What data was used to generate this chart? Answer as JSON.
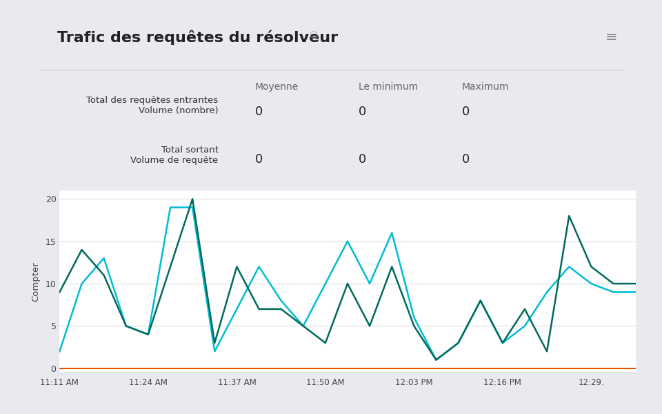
{
  "title": "Trafic des requêtes du résolveur",
  "ylabel": "Compter",
  "background_color": "#e8eaf0",
  "panel_color": "#ffffff",
  "table_headers": [
    "Moyenne",
    "Le minimum",
    "Maximum"
  ],
  "ytick_labels": [
    0,
    5,
    10,
    15,
    20
  ],
  "ylim": [
    -0.5,
    21
  ],
  "line1_color": "#00bcd4",
  "line2_color": "#00695c",
  "line3_color": "#e65100",
  "x_positions": [
    0,
    1,
    2,
    3,
    4,
    5,
    6,
    7,
    8,
    9,
    10,
    11,
    12,
    13,
    14,
    15,
    16,
    17,
    18,
    19,
    20,
    21,
    22,
    23,
    24,
    25,
    26
  ],
  "line1_y": [
    2,
    10,
    13,
    5,
    4,
    19,
    19,
    2,
    7,
    12,
    8,
    5,
    10,
    15,
    10,
    16,
    6,
    1,
    3,
    8,
    3,
    5,
    9,
    12,
    10,
    9,
    9
  ],
  "line2_y": [
    9,
    14,
    11,
    5,
    4,
    12,
    20,
    3,
    12,
    7,
    7,
    5,
    3,
    10,
    5,
    12,
    5,
    1,
    3,
    8,
    3,
    7,
    2,
    18,
    12,
    10,
    10
  ],
  "line3_y": [
    0,
    0,
    0,
    0,
    0,
    0,
    0,
    0,
    0,
    0,
    0,
    0,
    0,
    0,
    0,
    0,
    0,
    0,
    0,
    0,
    0,
    0,
    0,
    0,
    0,
    0,
    0
  ],
  "xtick_pos": [
    0,
    4,
    8,
    12,
    16,
    20,
    24
  ],
  "xtick_labels": [
    "11:11 AM",
    "11:24 AM",
    "11:37 AM",
    "11:50 AM",
    "12:03 PM",
    "12:16 PM",
    "12:29."
  ],
  "row1_label": "Total des requêtes entrantes\nVolume (nombre)",
  "row2_label": "Total sortant\nVolume de requête",
  "divider_color": "#cccccc",
  "grid_color": "#dddddd",
  "title_fontsize": 16,
  "header_fontsize": 10,
  "value_fontsize": 13,
  "row_fontsize": 9.5
}
